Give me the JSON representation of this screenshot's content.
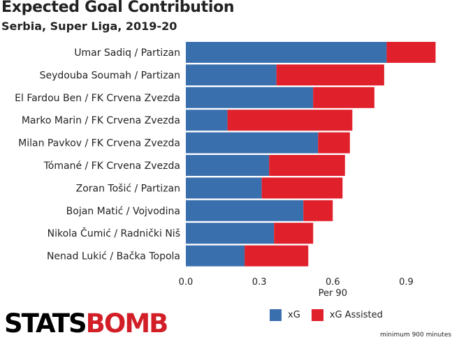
{
  "colors": {
    "xg": "#3a6fae",
    "xa": "#e0202b",
    "text": "#222222"
  },
  "header": {
    "title": "Expected Goal Contribution",
    "subtitle": "Serbia, Super Liga, 2019-20"
  },
  "chart_data": {
    "type": "bar",
    "orientation": "horizontal",
    "stacked": true,
    "categories": [
      "Umar Sadiq / Partizan",
      "Seydouba Soumah / Partizan",
      "El Fardou Ben / FK Crvena Zvezda",
      "Marko Marin / FK Crvena Zvezda",
      "Milan Pavkov / FK Crvena Zvezda",
      "Tómané / FK Crvena Zvezda",
      "Zoran Tošić / Partizan",
      "Bojan Matić / Vojvodina",
      "Nikola Čumić / Radnički Niš",
      "Nenad Lukić / Bačka Topola"
    ],
    "series": [
      {
        "name": "xG",
        "values": [
          0.82,
          0.37,
          0.52,
          0.17,
          0.54,
          0.34,
          0.31,
          0.48,
          0.36,
          0.24
        ]
      },
      {
        "name": "xG Assisted",
        "values": [
          0.2,
          0.44,
          0.25,
          0.51,
          0.13,
          0.31,
          0.33,
          0.12,
          0.16,
          0.26
        ]
      }
    ],
    "xlabel": "Per 90",
    "xlim": [
      0,
      1.05
    ],
    "xticks": [
      0.0,
      0.3,
      0.6,
      0.9
    ],
    "xtick_labels": [
      "0.0",
      "0.3",
      "0.6",
      "0.9"
    ],
    "grid": false,
    "legend_position": "bottom-right"
  },
  "legend": {
    "xg_label": "xG",
    "xa_label": "xG Assisted"
  },
  "footnote": "minimum 900 minutes",
  "logo": {
    "part1": "STATS",
    "part2": "BOMB"
  }
}
